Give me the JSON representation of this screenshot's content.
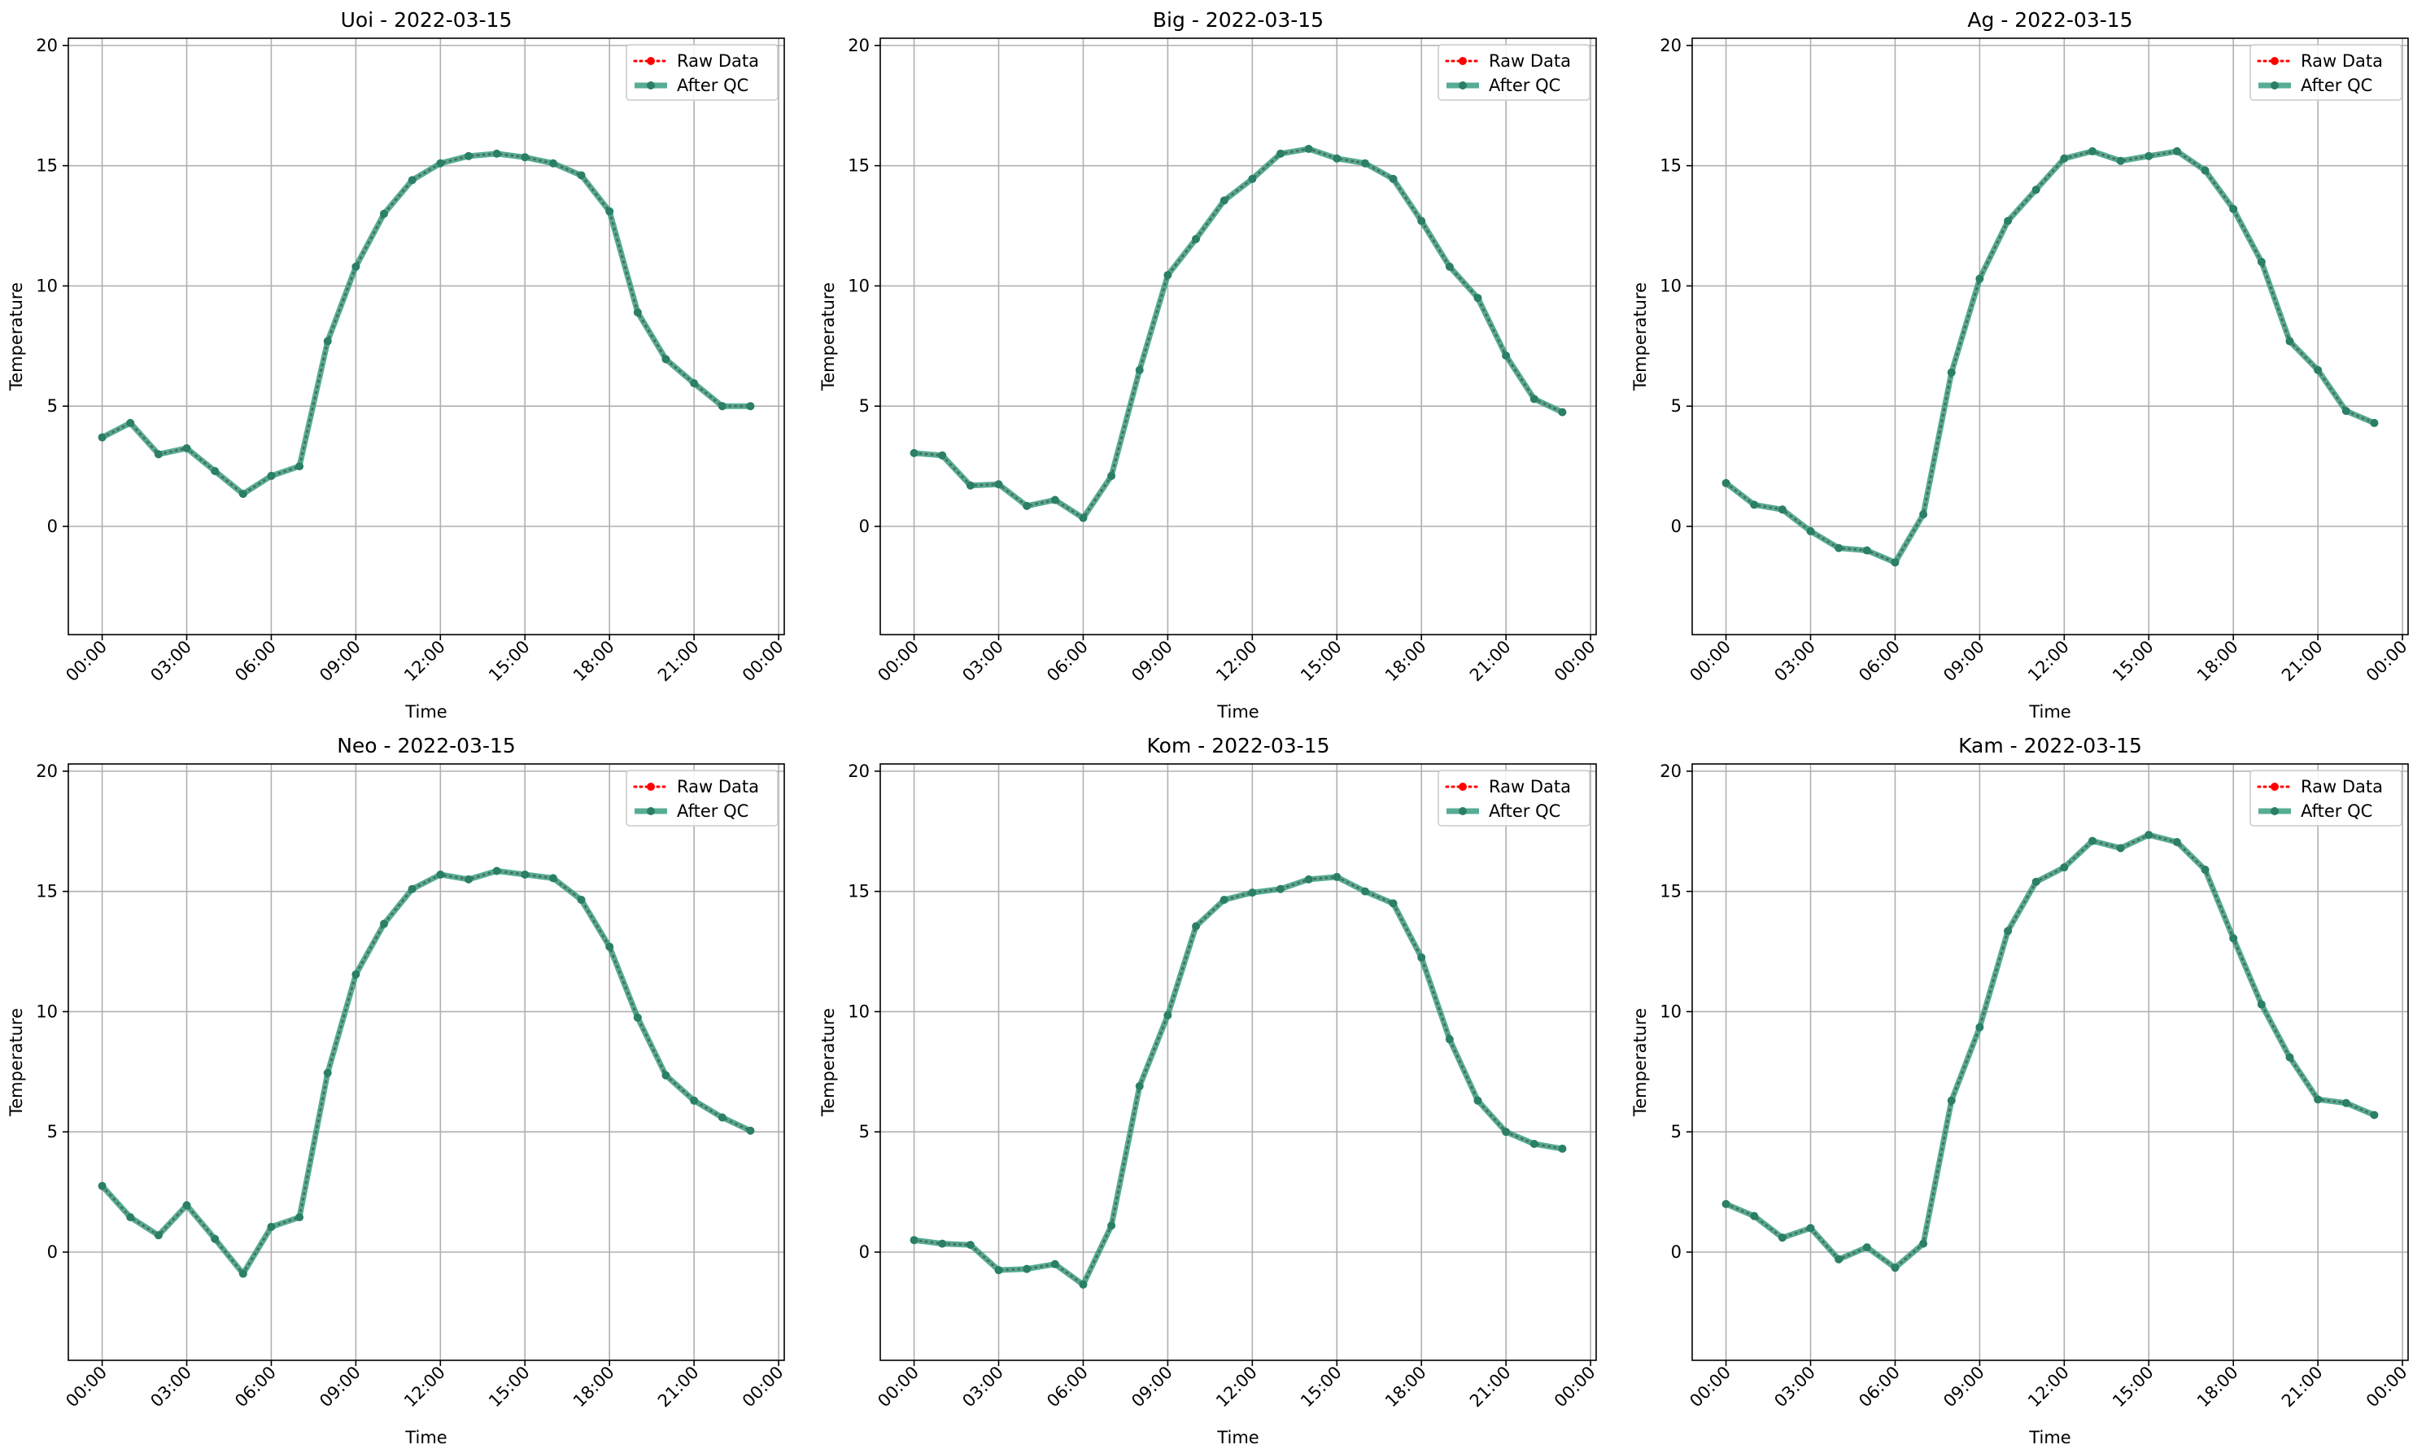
{
  "figure": {
    "legend_raw_label": "Raw Data",
    "legend_qc_label": "After QC",
    "colors": {
      "raw": "#ff0000",
      "after_qc": "#3a9e82",
      "after_qc_marker": "#2a7f66",
      "grid": "#b0b0b0",
      "axes": "#000000"
    }
  },
  "chart_data": [
    {
      "type": "line",
      "title": "Uoi - 2022-03-15",
      "xlabel": "Time",
      "ylabel": "Temperature",
      "xticks": [
        "00:00",
        "03:00",
        "06:00",
        "09:00",
        "12:00",
        "15:00",
        "18:00",
        "21:00",
        "00:00"
      ],
      "yticks": [
        0,
        5,
        10,
        15,
        20
      ],
      "ylim": [
        -4.5,
        20.3
      ],
      "xlim_hours": [
        -1.2,
        24.2
      ],
      "grid": true,
      "legend_position": "top-right",
      "x_hours": [
        0,
        1,
        2,
        3,
        4,
        5,
        6,
        7,
        8,
        9,
        10,
        11,
        12,
        13,
        14,
        15,
        16,
        17,
        18,
        19,
        20,
        21,
        22,
        23
      ],
      "series": [
        {
          "name": "Raw Data",
          "values": [
            3.7,
            4.3,
            3.0,
            3.25,
            2.3,
            1.35,
            2.1,
            2.5,
            7.7,
            10.8,
            13.0,
            14.4,
            15.1,
            15.4,
            15.5,
            15.35,
            15.1,
            14.6,
            13.1,
            8.9,
            6.95,
            5.95,
            5.0,
            5.0
          ]
        },
        {
          "name": "After QC",
          "values": [
            3.7,
            4.3,
            3.0,
            3.25,
            2.3,
            1.35,
            2.1,
            2.5,
            7.7,
            10.8,
            13.0,
            14.4,
            15.1,
            15.4,
            15.5,
            15.35,
            15.1,
            14.6,
            13.1,
            8.9,
            6.95,
            5.95,
            5.0,
            5.0
          ]
        }
      ]
    },
    {
      "type": "line",
      "title": "Big - 2022-03-15",
      "xlabel": "Time",
      "ylabel": "Temperature",
      "xticks": [
        "00:00",
        "03:00",
        "06:00",
        "09:00",
        "12:00",
        "15:00",
        "18:00",
        "21:00",
        "00:00"
      ],
      "yticks": [
        0,
        5,
        10,
        15,
        20
      ],
      "ylim": [
        -4.5,
        20.3
      ],
      "xlim_hours": [
        -1.2,
        24.2
      ],
      "grid": true,
      "legend_position": "top-right",
      "x_hours": [
        0,
        1,
        2,
        3,
        4,
        5,
        6,
        7,
        8,
        9,
        10,
        11,
        12,
        13,
        14,
        15,
        16,
        17,
        18,
        19,
        20,
        21,
        22,
        23
      ],
      "series": [
        {
          "name": "Raw Data",
          "values": [
            3.05,
            2.95,
            1.7,
            1.75,
            0.85,
            1.1,
            0.35,
            2.1,
            6.5,
            10.45,
            11.95,
            13.55,
            14.45,
            15.5,
            15.7,
            15.3,
            15.1,
            14.45,
            12.7,
            10.8,
            9.5,
            7.1,
            5.3,
            4.75
          ]
        },
        {
          "name": "After QC",
          "values": [
            3.05,
            2.95,
            1.7,
            1.75,
            0.85,
            1.1,
            0.35,
            2.1,
            6.5,
            10.45,
            11.95,
            13.55,
            14.45,
            15.5,
            15.7,
            15.3,
            15.1,
            14.45,
            12.7,
            10.8,
            9.5,
            7.1,
            5.3,
            4.75
          ]
        }
      ]
    },
    {
      "type": "line",
      "title": "Ag - 2022-03-15",
      "xlabel": "Time",
      "ylabel": "Temperature",
      "xticks": [
        "00:00",
        "03:00",
        "06:00",
        "09:00",
        "12:00",
        "15:00",
        "18:00",
        "21:00",
        "00:00"
      ],
      "yticks": [
        0,
        5,
        10,
        15,
        20
      ],
      "ylim": [
        -4.5,
        20.3
      ],
      "xlim_hours": [
        -1.2,
        24.2
      ],
      "grid": true,
      "legend_position": "top-right",
      "x_hours": [
        0,
        1,
        2,
        3,
        4,
        5,
        6,
        7,
        8,
        9,
        10,
        11,
        12,
        13,
        14,
        15,
        16,
        17,
        18,
        19,
        20,
        21,
        22,
        23
      ],
      "series": [
        {
          "name": "Raw Data",
          "values": [
            1.8,
            0.9,
            0.7,
            -0.2,
            -0.9,
            -1.0,
            -1.5,
            0.5,
            6.4,
            10.3,
            12.7,
            14.0,
            15.3,
            15.6,
            15.2,
            15.4,
            15.6,
            14.8,
            13.2,
            11.0,
            7.7,
            6.5,
            4.8,
            4.3
          ]
        },
        {
          "name": "After QC",
          "values": [
            1.8,
            0.9,
            0.7,
            -0.2,
            -0.9,
            -1.0,
            -1.5,
            0.5,
            6.4,
            10.3,
            12.7,
            14.0,
            15.3,
            15.6,
            15.2,
            15.4,
            15.6,
            14.8,
            13.2,
            11.0,
            7.7,
            6.5,
            4.8,
            4.3
          ]
        }
      ]
    },
    {
      "type": "line",
      "title": "Neo - 2022-03-15",
      "xlabel": "Time",
      "ylabel": "Temperature",
      "xticks": [
        "00:00",
        "03:00",
        "06:00",
        "09:00",
        "12:00",
        "15:00",
        "18:00",
        "21:00",
        "00:00"
      ],
      "yticks": [
        0,
        5,
        10,
        15,
        20
      ],
      "ylim": [
        -4.5,
        20.3
      ],
      "xlim_hours": [
        -1.2,
        24.2
      ],
      "grid": true,
      "legend_position": "top-right",
      "x_hours": [
        0,
        1,
        2,
        3,
        4,
        5,
        6,
        7,
        8,
        9,
        10,
        11,
        12,
        13,
        14,
        15,
        16,
        17,
        18,
        19,
        20,
        21,
        22,
        23
      ],
      "series": [
        {
          "name": "Raw Data",
          "values": [
            2.75,
            1.45,
            0.7,
            1.95,
            0.55,
            -0.9,
            1.05,
            1.45,
            7.45,
            11.55,
            13.65,
            15.1,
            15.7,
            15.5,
            15.85,
            15.7,
            15.55,
            14.65,
            12.7,
            9.75,
            7.35,
            6.3,
            5.6,
            5.05
          ]
        },
        {
          "name": "After QC",
          "values": [
            2.75,
            1.45,
            0.7,
            1.95,
            0.55,
            -0.9,
            1.05,
            1.45,
            7.45,
            11.55,
            13.65,
            15.1,
            15.7,
            15.5,
            15.85,
            15.7,
            15.55,
            14.65,
            12.7,
            9.75,
            7.35,
            6.3,
            5.6,
            5.05
          ]
        }
      ]
    },
    {
      "type": "line",
      "title": "Kom - 2022-03-15",
      "xlabel": "Time",
      "ylabel": "Temperature",
      "xticks": [
        "00:00",
        "03:00",
        "06:00",
        "09:00",
        "12:00",
        "15:00",
        "18:00",
        "21:00",
        "00:00"
      ],
      "yticks": [
        0,
        5,
        10,
        15,
        20
      ],
      "ylim": [
        -4.5,
        20.3
      ],
      "xlim_hours": [
        -1.2,
        24.2
      ],
      "grid": true,
      "legend_position": "top-right",
      "x_hours": [
        0,
        1,
        2,
        3,
        4,
        5,
        6,
        7,
        8,
        9,
        10,
        11,
        12,
        13,
        14,
        15,
        16,
        17,
        18,
        19,
        20,
        21,
        22,
        23
      ],
      "series": [
        {
          "name": "Raw Data",
          "values": [
            0.5,
            0.35,
            0.3,
            -0.75,
            -0.7,
            -0.5,
            -1.35,
            1.1,
            6.9,
            9.85,
            13.55,
            14.65,
            14.95,
            15.1,
            15.5,
            15.6,
            15.0,
            14.5,
            12.25,
            8.85,
            6.3,
            5.0,
            4.5,
            4.3
          ]
        },
        {
          "name": "After QC",
          "values": [
            0.5,
            0.35,
            0.3,
            -0.75,
            -0.7,
            -0.5,
            -1.35,
            1.1,
            6.9,
            9.85,
            13.55,
            14.65,
            14.95,
            15.1,
            15.5,
            15.6,
            15.0,
            14.5,
            12.25,
            8.85,
            6.3,
            5.0,
            4.5,
            4.3
          ]
        }
      ]
    },
    {
      "type": "line",
      "title": "Kam - 2022-03-15",
      "xlabel": "Time",
      "ylabel": "Temperature",
      "xticks": [
        "00:00",
        "03:00",
        "06:00",
        "09:00",
        "12:00",
        "15:00",
        "18:00",
        "21:00",
        "00:00"
      ],
      "yticks": [
        0,
        5,
        10,
        15,
        20
      ],
      "ylim": [
        -4.5,
        20.3
      ],
      "xlim_hours": [
        -1.2,
        24.2
      ],
      "grid": true,
      "legend_position": "top-right",
      "x_hours": [
        0,
        1,
        2,
        3,
        4,
        5,
        6,
        7,
        8,
        9,
        10,
        11,
        12,
        13,
        14,
        15,
        16,
        17,
        18,
        19,
        20,
        21,
        22,
        23
      ],
      "series": [
        {
          "name": "Raw Data",
          "values": [
            2.0,
            1.5,
            0.6,
            1.0,
            -0.3,
            0.2,
            -0.65,
            0.35,
            6.3,
            9.35,
            13.35,
            15.4,
            16.0,
            17.1,
            16.8,
            17.35,
            17.05,
            15.9,
            13.05,
            10.3,
            8.1,
            6.35,
            6.2,
            5.7
          ]
        },
        {
          "name": "After QC",
          "values": [
            2.0,
            1.5,
            0.6,
            1.0,
            -0.3,
            0.2,
            -0.65,
            0.35,
            6.3,
            9.35,
            13.35,
            15.4,
            16.0,
            17.1,
            16.8,
            17.35,
            17.05,
            15.9,
            13.05,
            10.3,
            8.1,
            6.35,
            6.2,
            5.7
          ]
        }
      ]
    }
  ]
}
